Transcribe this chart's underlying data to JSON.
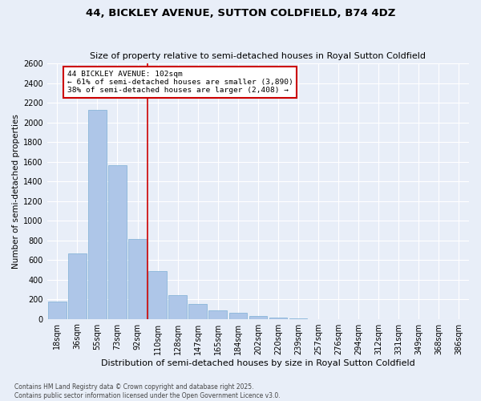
{
  "title": "44, BICKLEY AVENUE, SUTTON COLDFIELD, B74 4DZ",
  "subtitle": "Size of property relative to semi-detached houses in Royal Sutton Coldfield",
  "xlabel": "Distribution of semi-detached houses by size in Royal Sutton Coldfield",
  "ylabel": "Number of semi-detached properties",
  "categories": [
    "18sqm",
    "36sqm",
    "55sqm",
    "73sqm",
    "92sqm",
    "110sqm",
    "128sqm",
    "147sqm",
    "165sqm",
    "184sqm",
    "202sqm",
    "220sqm",
    "239sqm",
    "257sqm",
    "276sqm",
    "294sqm",
    "312sqm",
    "331sqm",
    "349sqm",
    "368sqm",
    "386sqm"
  ],
  "values": [
    180,
    670,
    2130,
    1560,
    810,
    490,
    240,
    150,
    90,
    60,
    30,
    10,
    3,
    0,
    0,
    0,
    0,
    0,
    0,
    0,
    0
  ],
  "bar_color": "#aec6e8",
  "bar_edge_color": "#7bafd4",
  "property_label": "44 BICKLEY AVENUE: 102sqm",
  "pct_smaller": 61,
  "pct_smaller_count": 3890,
  "pct_larger": 38,
  "pct_larger_count": 2408,
  "vline_color": "#cc0000",
  "vline_bin_index": 4,
  "annotation_box_color": "#cc0000",
  "ylim": [
    0,
    2600
  ],
  "yticks": [
    0,
    200,
    400,
    600,
    800,
    1000,
    1200,
    1400,
    1600,
    1800,
    2000,
    2200,
    2400,
    2600
  ],
  "background_color": "#e8eef8",
  "grid_color": "#ffffff",
  "footer": "Contains HM Land Registry data © Crown copyright and database right 2025.\nContains public sector information licensed under the Open Government Licence v3.0.",
  "title_fontsize": 9.5,
  "subtitle_fontsize": 8,
  "xlabel_fontsize": 8,
  "ylabel_fontsize": 7.5,
  "tick_fontsize": 7,
  "footer_fontsize": 5.5
}
